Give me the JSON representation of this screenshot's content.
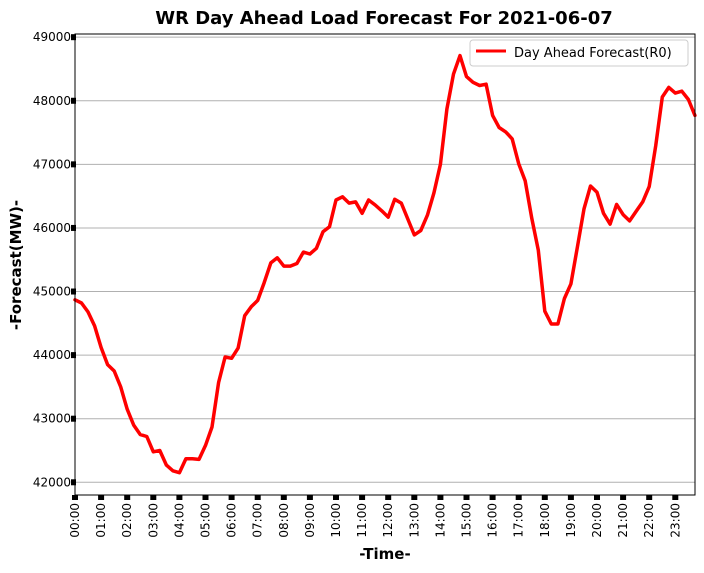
{
  "chart_data": {
    "type": "line",
    "title": "WR Day Ahead Load Forecast For 2021-06-07",
    "xlabel": "-Time-",
    "ylabel": "-Forecast(MW)-",
    "ylim": [
      41800,
      49050
    ],
    "yticks": [
      42000,
      43000,
      44000,
      45000,
      46000,
      47000,
      48000,
      49000
    ],
    "xtick_labels": [
      "00:00",
      "01:00",
      "02:00",
      "03:00",
      "04:00",
      "05:00",
      "06:00",
      "07:00",
      "08:00",
      "09:00",
      "10:00",
      "11:00",
      "12:00",
      "13:00",
      "14:00",
      "15:00",
      "16:00",
      "17:00",
      "18:00",
      "19:00",
      "20:00",
      "21:00",
      "22:00",
      "23:00"
    ],
    "grid": "horizontal",
    "legend": "top-right",
    "series": [
      {
        "name": "Day Ahead Forecast(R0)",
        "color": "#ff0000",
        "interval_minutes": 15,
        "values": [
          44870,
          44820,
          44680,
          44460,
          44120,
          43850,
          43750,
          43500,
          43150,
          42900,
          42750,
          42720,
          42480,
          42500,
          42270,
          42180,
          42150,
          42370,
          42370,
          42360,
          42580,
          42870,
          43570,
          43970,
          43950,
          44110,
          44620,
          44760,
          44860,
          45140,
          45450,
          45530,
          45400,
          45400,
          45440,
          45620,
          45590,
          45680,
          45940,
          46020,
          46440,
          46490,
          46390,
          46410,
          46230,
          46440,
          46360,
          46270,
          46170,
          46450,
          46390,
          46140,
          45890,
          45960,
          46200,
          46550,
          47000,
          47870,
          48420,
          48710,
          48380,
          48290,
          48240,
          48260,
          47770,
          47580,
          47510,
          47400,
          47010,
          46740,
          46150,
          45650,
          44690,
          44490,
          44490,
          44890,
          45120,
          45700,
          46300,
          46660,
          46560,
          46230,
          46060,
          46370,
          46210,
          46110,
          46260,
          46410,
          46650,
          47290,
          48060,
          48210,
          48120,
          48150,
          48020,
          47770
        ]
      }
    ]
  }
}
